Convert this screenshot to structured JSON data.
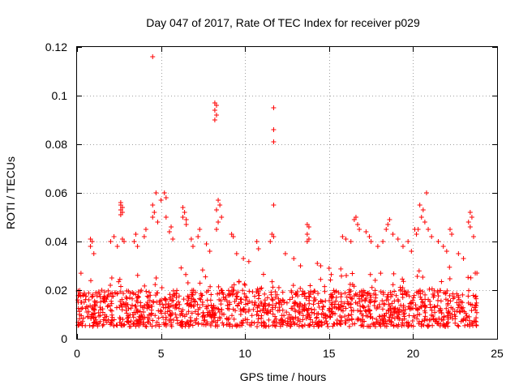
{
  "chart_data": {
    "type": "scatter",
    "title": "Day 047 of 2017, Rate Of TEC Index for receiver p029",
    "xlabel": "GPS time / hours",
    "ylabel": "ROTI / TECUs",
    "xlim": [
      0,
      25
    ],
    "ylim": [
      0,
      0.12
    ],
    "xticks": [
      0,
      5,
      10,
      15,
      20,
      25
    ],
    "yticks": [
      0,
      0.02,
      0.04,
      0.06,
      0.08,
      0.1,
      0.12
    ],
    "xtick_labels": [
      "0",
      "5",
      "10",
      "15",
      "20",
      "25"
    ],
    "ytick_labels": [
      "0",
      "0.02",
      "0.04",
      "0.06",
      "0.08",
      "0.1",
      "0.12"
    ],
    "grid": true,
    "marker": "plus",
    "color": "#ff0000",
    "data_span_hours": [
      0,
      23.8
    ],
    "baseline_band": [
      0.005,
      0.02
    ],
    "points": [
      [
        4.5,
        0.116
      ],
      [
        8.2,
        0.097
      ],
      [
        8.3,
        0.096
      ],
      [
        8.2,
        0.094
      ],
      [
        8.3,
        0.092
      ],
      [
        8.2,
        0.09
      ],
      [
        11.7,
        0.095
      ],
      [
        11.7,
        0.086
      ],
      [
        11.7,
        0.081
      ],
      [
        11.7,
        0.055
      ],
      [
        4.7,
        0.06
      ],
      [
        5.2,
        0.06
      ],
      [
        5.3,
        0.058
      ],
      [
        5.0,
        0.057
      ],
      [
        20.8,
        0.06
      ],
      [
        2.6,
        0.056
      ],
      [
        2.6,
        0.055
      ],
      [
        2.7,
        0.054
      ],
      [
        2.6,
        0.053
      ],
      [
        2.7,
        0.052
      ],
      [
        2.6,
        0.051
      ],
      [
        4.5,
        0.055
      ],
      [
        4.6,
        0.052
      ],
      [
        4.5,
        0.05
      ],
      [
        4.8,
        0.048
      ],
      [
        5.3,
        0.05
      ],
      [
        6.3,
        0.054
      ],
      [
        6.4,
        0.052
      ],
      [
        6.3,
        0.05
      ],
      [
        6.5,
        0.049
      ],
      [
        6.5,
        0.047
      ],
      [
        8.4,
        0.057
      ],
      [
        8.5,
        0.055
      ],
      [
        8.3,
        0.053
      ],
      [
        8.6,
        0.05
      ],
      [
        8.4,
        0.048
      ],
      [
        8.3,
        0.045
      ],
      [
        20.4,
        0.055
      ],
      [
        20.6,
        0.053
      ],
      [
        20.5,
        0.05
      ],
      [
        20.7,
        0.048
      ],
      [
        20.3,
        0.045
      ],
      [
        0.8,
        0.041
      ],
      [
        0.9,
        0.04
      ],
      [
        0.8,
        0.038
      ],
      [
        1.0,
        0.035
      ],
      [
        2.2,
        0.042
      ],
      [
        2.0,
        0.04
      ],
      [
        2.4,
        0.038
      ],
      [
        2.7,
        0.041
      ],
      [
        2.8,
        0.04
      ],
      [
        3.5,
        0.043
      ],
      [
        3.4,
        0.04
      ],
      [
        3.6,
        0.038
      ],
      [
        4.1,
        0.045
      ],
      [
        4.0,
        0.042
      ],
      [
        5.6,
        0.046
      ],
      [
        5.5,
        0.044
      ],
      [
        5.7,
        0.041
      ],
      [
        6.8,
        0.041
      ],
      [
        6.9,
        0.038
      ],
      [
        7.3,
        0.045
      ],
      [
        7.2,
        0.042
      ],
      [
        7.7,
        0.039
      ],
      [
        7.9,
        0.036
      ],
      [
        9.2,
        0.043
      ],
      [
        9.3,
        0.042
      ],
      [
        9.5,
        0.035
      ],
      [
        9.9,
        0.033
      ],
      [
        10.7,
        0.04
      ],
      [
        10.8,
        0.037
      ],
      [
        11.6,
        0.043
      ],
      [
        11.7,
        0.042
      ],
      [
        11.5,
        0.04
      ],
      [
        12.4,
        0.035
      ],
      [
        12.9,
        0.033
      ],
      [
        13.3,
        0.03
      ],
      [
        13.7,
        0.047
      ],
      [
        13.8,
        0.046
      ],
      [
        13.7,
        0.043
      ],
      [
        13.8,
        0.041
      ],
      [
        13.7,
        0.04
      ],
      [
        14.3,
        0.031
      ],
      [
        14.5,
        0.03
      ],
      [
        15.0,
        0.029
      ],
      [
        15.8,
        0.042
      ],
      [
        16.0,
        0.041
      ],
      [
        16.3,
        0.04
      ],
      [
        16.6,
        0.05
      ],
      [
        16.5,
        0.049
      ],
      [
        16.7,
        0.047
      ],
      [
        16.8,
        0.045
      ],
      [
        17.2,
        0.044
      ],
      [
        17.4,
        0.042
      ],
      [
        17.5,
        0.04
      ],
      [
        17.9,
        0.038
      ],
      [
        18.2,
        0.04
      ],
      [
        18.5,
        0.047
      ],
      [
        18.6,
        0.049
      ],
      [
        18.4,
        0.045
      ],
      [
        18.8,
        0.043
      ],
      [
        19.1,
        0.041
      ],
      [
        19.4,
        0.038
      ],
      [
        19.7,
        0.04
      ],
      [
        19.9,
        0.036
      ],
      [
        20.1,
        0.045
      ],
      [
        20.2,
        0.043
      ],
      [
        20.9,
        0.045
      ],
      [
        21.1,
        0.042
      ],
      [
        21.5,
        0.04
      ],
      [
        21.8,
        0.038
      ],
      [
        22.0,
        0.036
      ],
      [
        22.2,
        0.045
      ],
      [
        22.3,
        0.043
      ],
      [
        22.7,
        0.035
      ],
      [
        23.0,
        0.033
      ],
      [
        23.3,
        0.048
      ],
      [
        23.4,
        0.052
      ],
      [
        23.5,
        0.05
      ],
      [
        23.4,
        0.046
      ],
      [
        23.6,
        0.042
      ],
      [
        23.7,
        0.027
      ],
      [
        23.8,
        0.027
      ]
    ]
  }
}
